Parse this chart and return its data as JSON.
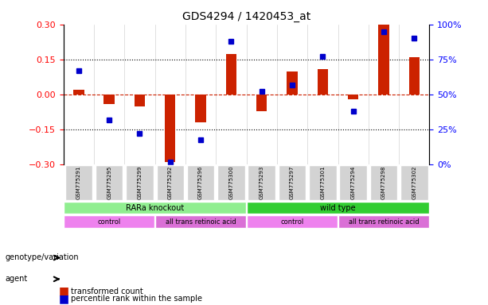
{
  "title": "GDS4294 / 1420453_at",
  "samples": [
    "GSM775291",
    "GSM775295",
    "GSM775299",
    "GSM775292",
    "GSM775296",
    "GSM775300",
    "GSM775293",
    "GSM775297",
    "GSM775301",
    "GSM775294",
    "GSM775298",
    "GSM775302"
  ],
  "transformed_count": [
    0.02,
    -0.04,
    -0.05,
    -0.29,
    -0.12,
    0.175,
    -0.07,
    0.1,
    0.11,
    -0.02,
    0.3,
    0.16
  ],
  "percentile_rank": [
    67,
    32,
    22,
    2,
    18,
    88,
    52,
    57,
    77,
    38,
    95,
    90
  ],
  "genotype_groups": [
    {
      "label": "RARa knockout",
      "start": 0,
      "end": 6,
      "color": "#90EE90"
    },
    {
      "label": "wild type",
      "start": 6,
      "end": 12,
      "color": "#32CD32"
    }
  ],
  "agent_groups": [
    {
      "label": "control",
      "start": 0,
      "end": 3,
      "color": "#EE82EE"
    },
    {
      "label": "all trans retinoic acid",
      "start": 3,
      "end": 6,
      "color": "#DA70D6"
    },
    {
      "label": "control",
      "start": 6,
      "end": 9,
      "color": "#EE82EE"
    },
    {
      "label": "all trans retinoic acid",
      "start": 9,
      "end": 12,
      "color": "#DA70D6"
    }
  ],
  "bar_color": "#CC2200",
  "dot_color": "#0000CC",
  "left_ylim": [
    -0.3,
    0.3
  ],
  "right_ylim": [
    0,
    100
  ],
  "left_yticks": [
    -0.3,
    -0.15,
    0,
    0.15,
    0.3
  ],
  "right_yticks": [
    0,
    25,
    50,
    75,
    100
  ],
  "right_yticklabels": [
    "0%",
    "25%",
    "50%",
    "75%",
    "100%"
  ],
  "hline_y": [
    0.15,
    0,
    -0.15
  ],
  "hline_styles": [
    "dotted",
    "dashed",
    "dotted"
  ],
  "legend_items": [
    {
      "color": "#CC2200",
      "label": "transformed count"
    },
    {
      "color": "#0000CC",
      "label": "percentile rank within the sample"
    }
  ]
}
